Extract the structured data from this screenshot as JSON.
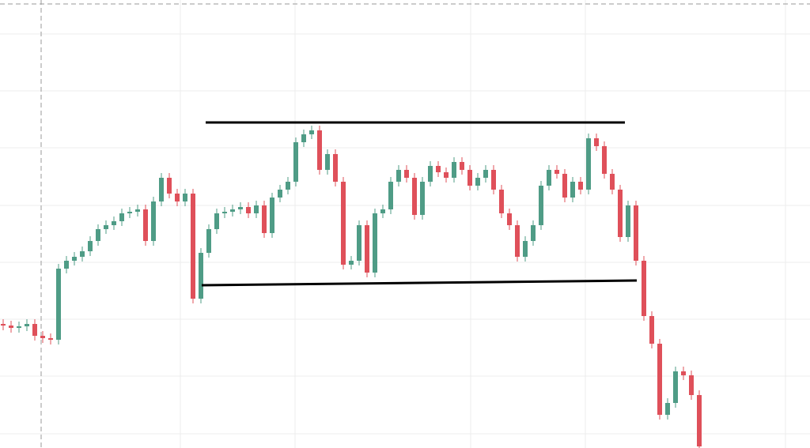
{
  "chart_data": {
    "type": "candlestick",
    "up_color": "#4f9c86",
    "down_color": "#df505a",
    "xlim": [
      -0.4,
      102
    ],
    "ylim": [
      0,
      567
    ],
    "xticks": [
      22.4,
      36.9,
      59.1,
      73.6,
      98.9
    ],
    "yticks": [
      524,
      452,
      380,
      307,
      235,
      163,
      91,
      18
    ],
    "grid": true,
    "crosshair": {
      "x": 4.8,
      "y": 562
    },
    "open": [
      157,
      155,
      152,
      154,
      157,
      142,
      139,
      137,
      227,
      237,
      242,
      249,
      262,
      277,
      282,
      287,
      297,
      299,
      302,
      262,
      312,
      342,
      322,
      312,
      322,
      189,
      247,
      277,
      297,
      299,
      302,
      305,
      297,
      307,
      272,
      317,
      327,
      337,
      387,
      397,
      402,
      352,
      372,
      337,
      232,
      237,
      282,
      222,
      297,
      302,
      337,
      352,
      342,
      295,
      337,
      357,
      349,
      342,
      362,
      352,
      332,
      342,
      352,
      327,
      297,
      282,
      242,
      262,
      282,
      332,
      352,
      347,
      317,
      337,
      327,
      392,
      382,
      347,
      327,
      267,
      307,
      237,
      167,
      132,
      42,
      57,
      97,
      92,
      67
    ],
    "high": [
      163,
      161,
      160,
      163,
      163,
      148,
      145,
      233,
      243,
      248,
      255,
      268,
      283,
      288,
      293,
      303,
      305,
      308,
      308,
      318,
      348,
      348,
      328,
      328,
      328,
      253,
      283,
      303,
      305,
      308,
      311,
      311,
      313,
      313,
      323,
      333,
      343,
      393,
      403,
      408,
      408,
      378,
      378,
      343,
      243,
      288,
      288,
      303,
      308,
      343,
      358,
      358,
      348,
      343,
      363,
      363,
      355,
      368,
      368,
      358,
      348,
      358,
      358,
      333,
      303,
      288,
      268,
      288,
      338,
      358,
      358,
      353,
      343,
      343,
      398,
      398,
      388,
      353,
      333,
      313,
      313,
      243,
      173,
      138,
      63,
      103,
      103,
      98,
      73
    ],
    "low": [
      149,
      146,
      146,
      148,
      136,
      133,
      131,
      131,
      221,
      231,
      236,
      243,
      256,
      271,
      276,
      281,
      291,
      293,
      256,
      256,
      306,
      316,
      306,
      306,
      183,
      183,
      241,
      271,
      291,
      293,
      296,
      291,
      291,
      266,
      266,
      311,
      321,
      331,
      381,
      391,
      346,
      346,
      331,
      226,
      226,
      231,
      216,
      216,
      291,
      296,
      331,
      336,
      289,
      289,
      331,
      343,
      336,
      336,
      346,
      326,
      326,
      336,
      321,
      291,
      276,
      236,
      236,
      256,
      276,
      326,
      341,
      311,
      311,
      321,
      321,
      376,
      341,
      321,
      261,
      261,
      231,
      161,
      126,
      36,
      36,
      51,
      86,
      61,
      0
    ],
    "close": [
      155,
      152,
      154,
      157,
      142,
      139,
      137,
      227,
      237,
      242,
      249,
      262,
      277,
      282,
      287,
      297,
      299,
      302,
      262,
      312,
      342,
      322,
      312,
      322,
      189,
      247,
      277,
      297,
      299,
      302,
      305,
      297,
      307,
      272,
      317,
      327,
      337,
      387,
      397,
      402,
      352,
      372,
      337,
      232,
      237,
      282,
      222,
      297,
      302,
      337,
      352,
      342,
      295,
      337,
      357,
      349,
      342,
      362,
      352,
      332,
      342,
      352,
      327,
      297,
      282,
      242,
      262,
      282,
      332,
      352,
      347,
      317,
      337,
      327,
      392,
      382,
      347,
      327,
      267,
      307,
      237,
      167,
      132,
      42,
      57,
      97,
      92,
      67,
      2
    ],
    "trendlines": [
      {
        "x": [
          25.6,
          78.6
        ],
        "y": [
          412,
          412
        ],
        "color": "#000000"
      },
      {
        "x": [
          25.1,
          80.1
        ],
        "y": [
          206,
          212
        ],
        "color": "#000000"
      }
    ]
  }
}
